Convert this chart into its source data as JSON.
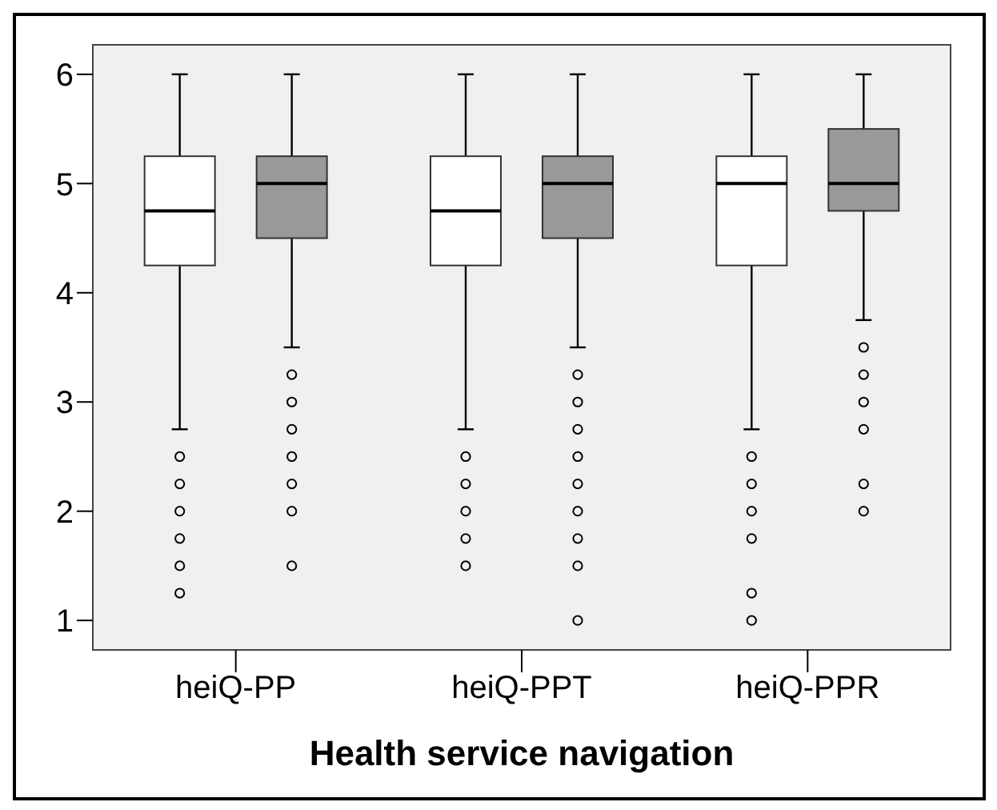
{
  "chart_data": {
    "type": "box",
    "xlabel": "Health service navigation",
    "categories": [
      "heiQ-PP",
      "heiQ-PPT",
      "heiQ-PPR"
    ],
    "series": [
      {
        "color": "#ffffff",
        "boxes": [
          {
            "low": 2.75,
            "q1": 4.25,
            "median": 4.75,
            "q3": 5.25,
            "high": 6,
            "outliers": [
              2.5,
              2.25,
              2,
              1.75,
              1.5,
              1.25
            ]
          },
          {
            "low": 2.75,
            "q1": 4.25,
            "median": 4.75,
            "q3": 5.25,
            "high": 6,
            "outliers": [
              2.5,
              2.25,
              2,
              1.75,
              1.5
            ]
          },
          {
            "low": 2.75,
            "q1": 4.25,
            "median": 5,
            "q3": 5.25,
            "high": 6,
            "outliers": [
              2.5,
              2.25,
              2,
              1.75,
              1.25,
              1
            ]
          }
        ]
      },
      {
        "color": "#999999",
        "boxes": [
          {
            "low": 3.5,
            "q1": 4.5,
            "median": 5,
            "q3": 5.25,
            "high": 6,
            "outliers": [
              3.25,
              3,
              2.75,
              2.5,
              2.25,
              2,
              1.5
            ]
          },
          {
            "low": 3.5,
            "q1": 4.5,
            "median": 5,
            "q3": 5.25,
            "high": 6,
            "outliers": [
              3.25,
              3,
              2.75,
              2.5,
              2.25,
              2,
              1.75,
              1.5,
              1
            ]
          },
          {
            "low": 3.75,
            "q1": 4.75,
            "median": 5,
            "q3": 5.5,
            "high": 6,
            "outliers": [
              3.5,
              3.25,
              3,
              2.75,
              2.25,
              2
            ]
          }
        ]
      }
    ],
    "ylim": [
      0.73,
      6.27
    ],
    "yticks": [
      1,
      2,
      3,
      4,
      5,
      6
    ]
  }
}
